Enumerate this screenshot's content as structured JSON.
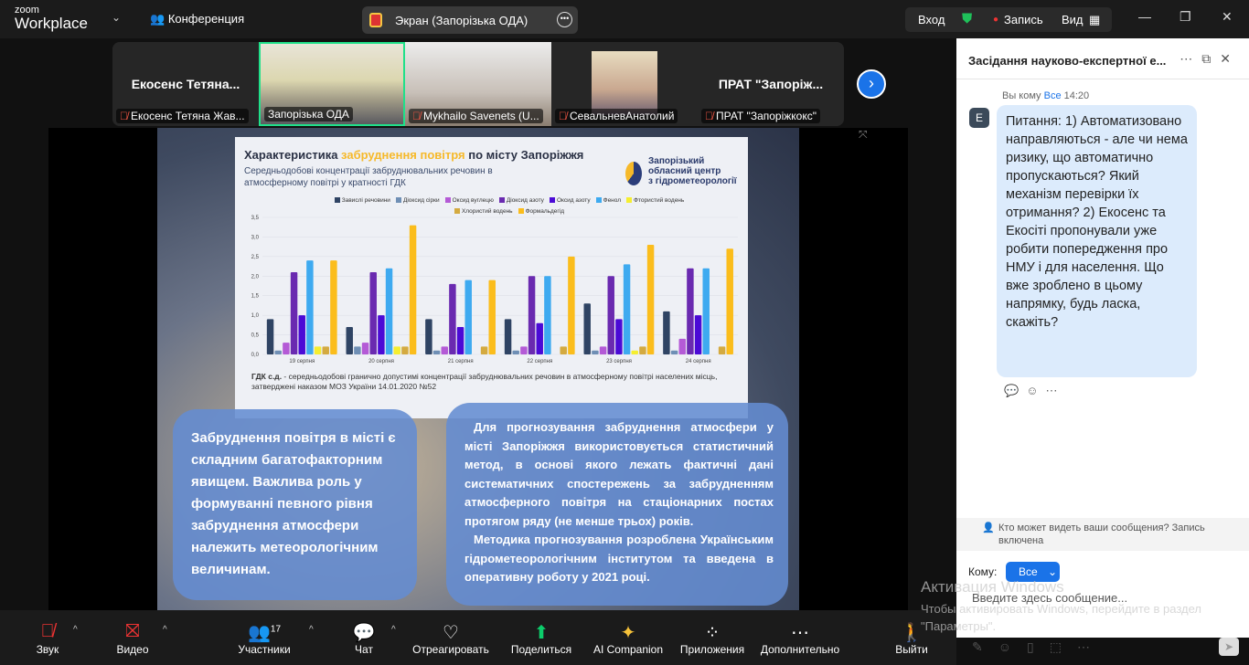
{
  "topbar": {
    "brand_small": "zoom",
    "brand": "Workplace",
    "meeting": "Конференция",
    "share_label": "Экран (Запорізька ОДА)",
    "signin": "Вход",
    "record": "Запись",
    "view": "Вид"
  },
  "participants": [
    {
      "big": "Екосенс  Тетяна...",
      "name": "Екосенс Тетяна Жав..."
    },
    {
      "name": "Запорізька ОДА"
    },
    {
      "name": "Mykhailo Savenets (U..."
    },
    {
      "name": "СевальневАнатолий"
    },
    {
      "big": "ПРАТ  \"Запоріж...",
      "name": "ПРАТ \"Запоріжкокс\""
    }
  ],
  "slide": {
    "title_a": "Характеристика ",
    "title_b": "забруднення повітря",
    "title_c": " по місту Запоріжжя",
    "subtitle": "Середньодобові концентрації забруднювальних речовин в атмосферному повітрі у кратності ГДК",
    "org": [
      "Запорізький",
      "обласний центр",
      "з гідрометеорології"
    ],
    "note_bold": "ГДК с.д.",
    "note": " - середньодобові гранично допустимі концентрації забруднювальних речовин в атмосферному повітрі населених місць, затверджені наказом МОЗ України 14.01.2020 №52",
    "box1": "Забруднення повітря в місті є складним багатофакторним явищем. Важлива роль у формуванні певного рівня забруднення атмосфери належить метеорологічним величинам.",
    "box2_p1": "Для прогнозування забруднення атмосфери у місті Запоріжжя використовується статистичний метод, в основі  якого лежать фактичні дані систематичних спостережень за  забрудненням атмосферного повітря на стаціонарних постах протягом ряду (не менше трьох) років.",
    "box2_p2": "Методика прогнозування розроблена Українським гідрометеорологічним інститутом та введена в оперативну роботу у 2021 році."
  },
  "chart_data": {
    "type": "bar",
    "categories": [
      "19 серпня",
      "20 серпня",
      "21 серпня",
      "22 серпня",
      "23 серпня",
      "24 серпня"
    ],
    "ylim": [
      0,
      3.5
    ],
    "yticks": [
      "0,0",
      "0,5",
      "1,0",
      "1,5",
      "2,0",
      "2,5",
      "3,0",
      "3,5"
    ],
    "grid": true,
    "legend": "top",
    "series": [
      {
        "name": "Завислі речовини",
        "color": "#2f4464",
        "values": [
          0.9,
          0.7,
          0.9,
          0.9,
          1.3,
          1.1
        ]
      },
      {
        "name": "Діоксид сірки",
        "color": "#6f8fb5",
        "values": [
          0.1,
          0.2,
          0.1,
          0.1,
          0.1,
          0.1
        ]
      },
      {
        "name": "Оксид вуглецю",
        "color": "#b45ad6",
        "values": [
          0.3,
          0.3,
          0.2,
          0.2,
          0.2,
          0.4
        ]
      },
      {
        "name": "Діоксид азоту",
        "color": "#6a2ab0",
        "values": [
          2.1,
          2.1,
          1.8,
          2.0,
          2.0,
          2.2
        ]
      },
      {
        "name": "Оксид азоту",
        "color": "#4b0ad6",
        "values": [
          1.0,
          1.0,
          0.7,
          0.8,
          0.9,
          1.0
        ]
      },
      {
        "name": "Фенол",
        "color": "#3eaaf0",
        "values": [
          2.4,
          2.2,
          1.9,
          2.0,
          2.3,
          2.2
        ]
      },
      {
        "name": "Фтористий водень",
        "color": "#f5ee30",
        "values": [
          0.2,
          0.2,
          0,
          0,
          0.1,
          0
        ]
      },
      {
        "name": "Хлористий водень",
        "color": "#d4aa40",
        "values": [
          0.2,
          0.2,
          0.2,
          0.2,
          0.2,
          0.2
        ]
      },
      {
        "name": "Формальдегід",
        "color": "#fbbd1c",
        "values": [
          2.4,
          3.3,
          1.9,
          2.5,
          2.8,
          2.7
        ]
      }
    ]
  },
  "chat": {
    "title": "Засідання науково-експертної е...",
    "to_label": "Вы кому",
    "to_target": "Все",
    "time": "14:20",
    "avatar": "E",
    "message": "Питання: 1) Автоматизовано направляються - але чи нема ризику, що автоматично пропускаються? Який механізм перевірки їх отримання? 2) Екосенс та Екосіті пропонували уже робити попередження про НМУ і для населення. Що вже зроблено в цьому напрямку, будь ласка, скажіть?",
    "privacy": "Кто может видеть ваши сообщения? Запись включена",
    "recipient_label": "Кому:",
    "recipient": "Все",
    "placeholder": "Введите здесь сообщение..."
  },
  "watermark": {
    "title": "Активация Windows",
    "text": "Чтобы активировать Windows, перейдите в раздел \"Параметры\"."
  },
  "toolbar": {
    "audio": "Звук",
    "video": "Видео",
    "participants": "Участники",
    "participants_count": "17",
    "chat": "Чат",
    "react": "Отреагировать",
    "share": "Поделиться",
    "ai": "AI Companion",
    "apps": "Приложения",
    "more": "Дополнительно",
    "leave": "Выйти"
  },
  "colors": {
    "accent": "#1a73e8",
    "active_speaker": "#20e08a",
    "share_green": "#0ccd6b"
  }
}
